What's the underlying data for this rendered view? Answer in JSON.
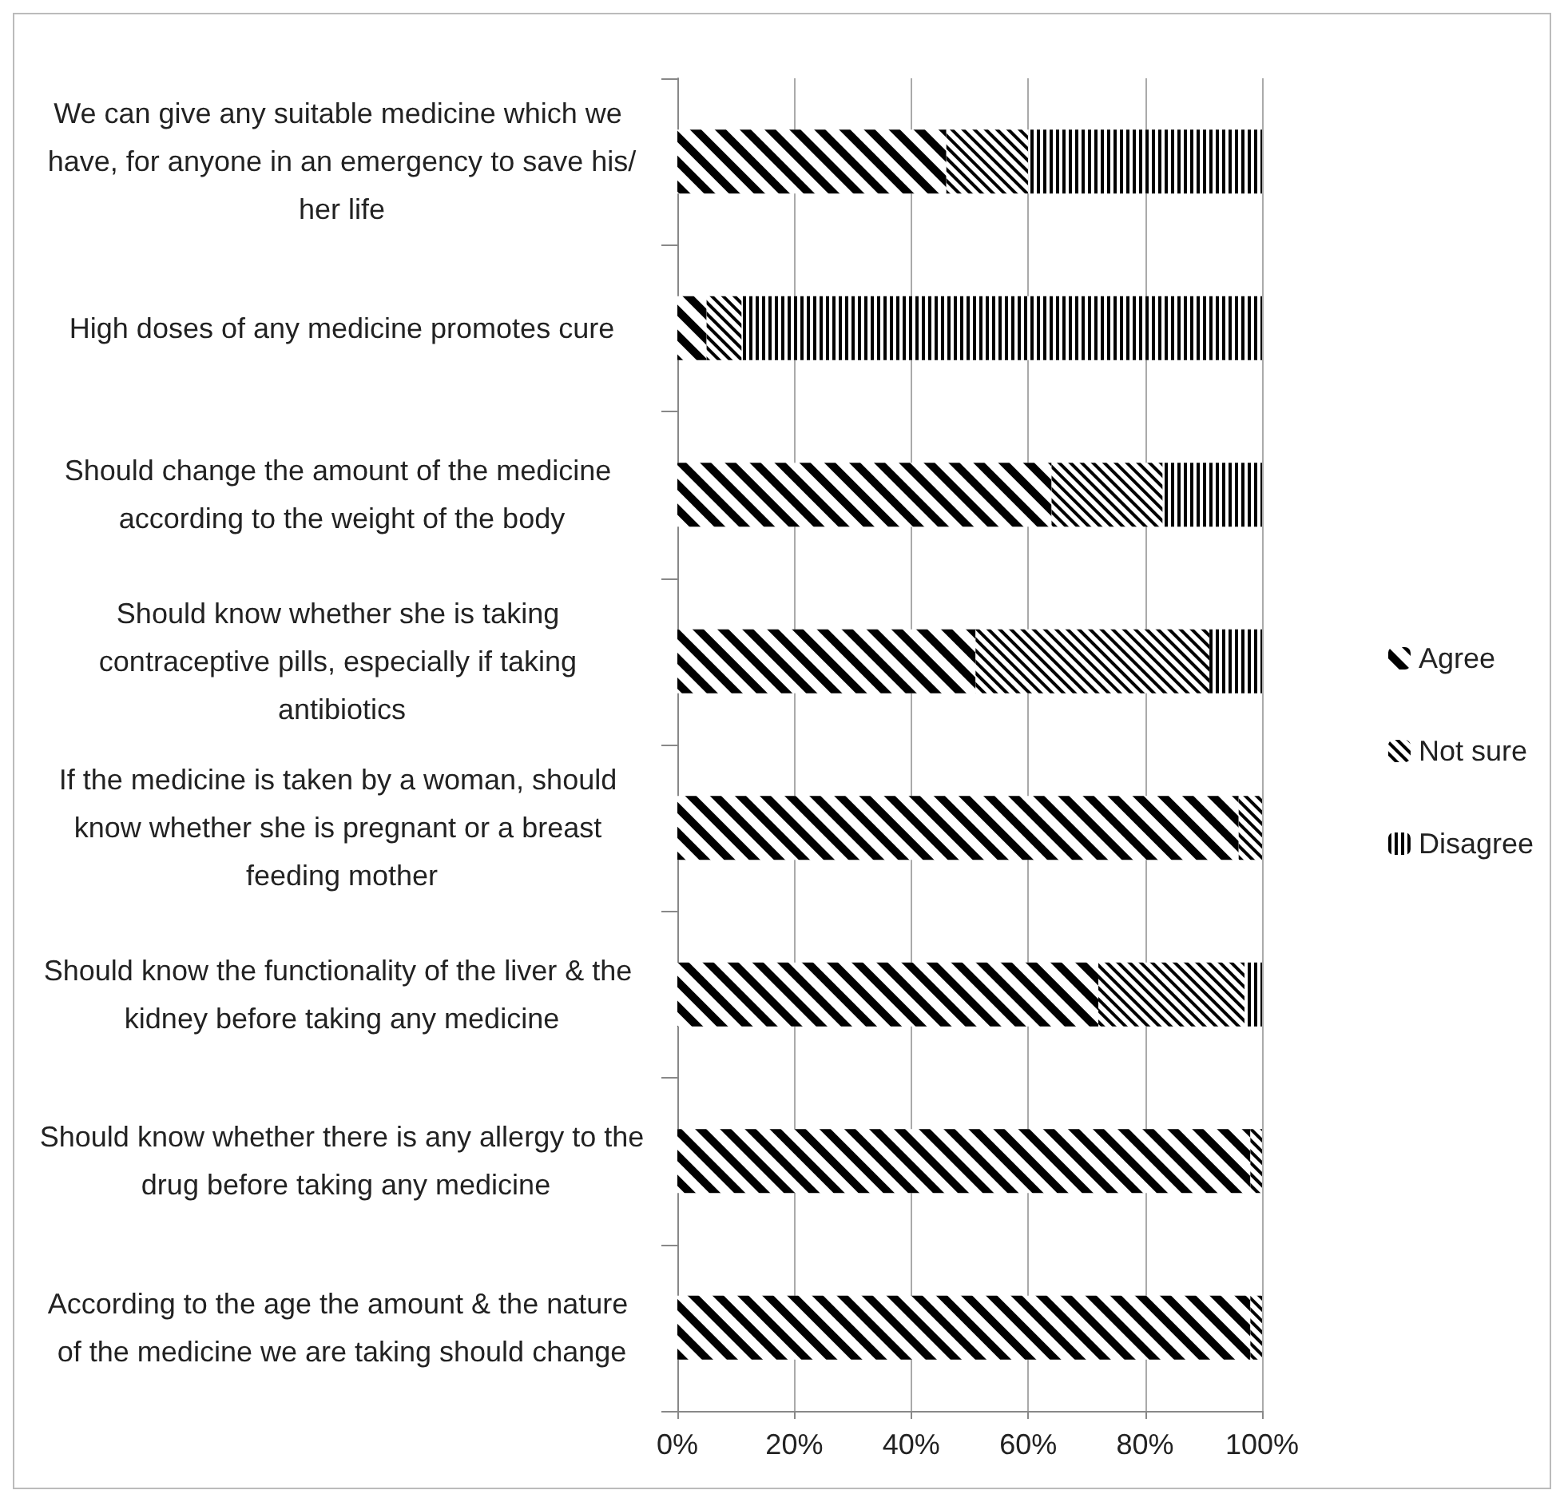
{
  "chart_data": {
    "type": "bar",
    "orientation": "horizontal",
    "stacked": true,
    "categories": [
      "We can give any suitable medicine which we have, for anyone in an emergency to save his/her life",
      "High doses of any medicine promotes cure",
      "Should change the amount of the medicine according to the weight of the body",
      "Should know whether she is taking contraceptive pills, especially if taking antibiotics",
      "If the medicine is taken by a woman, should know whether she is pregnant or a breast feeding mother",
      "Should know the functionality of the liver & the kidney before taking any medicine",
      "Should know whether there is any allergy to the drug before taking any medicine",
      "According to the age the amount & the nature of the medicine we are taking should change"
    ],
    "series": [
      {
        "name": "Agree",
        "color": "#000000",
        "values": [
          46,
          5,
          64,
          51,
          96,
          72,
          98,
          98
        ]
      },
      {
        "name": "Not sure",
        "color": "#000000",
        "values": [
          14,
          6,
          19,
          40,
          4,
          25,
          2,
          2
        ]
      },
      {
        "name": "Disagree",
        "color": "#000000",
        "values": [
          40,
          89,
          17,
          9,
          0,
          3,
          0,
          0
        ]
      }
    ],
    "xlim": [
      0,
      100
    ],
    "xticks": [
      {
        "value": 0,
        "label": "0%"
      },
      {
        "value": 20,
        "label": "20%"
      },
      {
        "value": 40,
        "label": "40%"
      },
      {
        "value": 60,
        "label": "60%"
      },
      {
        "value": 80,
        "label": "80%"
      },
      {
        "value": 100,
        "label": "100%"
      }
    ],
    "grid": "x",
    "legend": "right"
  }
}
